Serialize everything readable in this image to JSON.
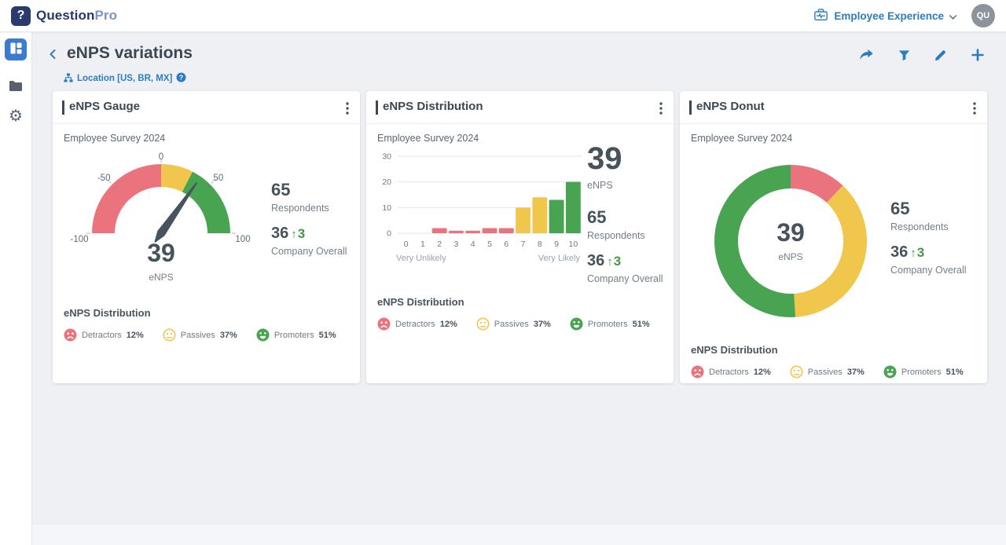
{
  "topbar": {
    "brand": {
      "logo_glyph": "?",
      "name_primary": "Question",
      "name_secondary": "Pro"
    },
    "product_switcher_label": "Employee Experience",
    "avatar_initials": "QU"
  },
  "page": {
    "title": "eNPS variations",
    "drilldown_label": "Location [US, BR, MX]"
  },
  "toolbar_icons": [
    "share",
    "filter",
    "edit",
    "add"
  ],
  "sidebar_icons": [
    "dashboard-grid",
    "folder",
    "settings-gear"
  ],
  "metrics": {
    "score": {
      "value": "39",
      "label": "eNPS"
    },
    "respondents": {
      "value": "65",
      "label": "Respondents"
    },
    "company": {
      "value": "36",
      "arrow": "↑",
      "delta": "3",
      "label": "Company Overall"
    }
  },
  "cards": [
    {
      "title": "eNPS Gauge",
      "subtitle": "Employee Survey 2024"
    },
    {
      "title": "eNPS Distribution",
      "subtitle": "Employee Survey 2024"
    },
    {
      "title": "eNPS Donut",
      "subtitle": "Employee Survey 2024"
    }
  ],
  "distribution": {
    "title": "eNPS Distribution",
    "items": [
      {
        "label": "Detractors",
        "value": "12%",
        "mood": "sad",
        "color": "#ea737e"
      },
      {
        "label": "Passives",
        "value": "37%",
        "mood": "neutral",
        "color": "#f1c64d"
      },
      {
        "label": "Promoters",
        "value": "51%",
        "mood": "happy",
        "color": "#49a451"
      }
    ]
  },
  "chart_data": [
    {
      "type": "gauge",
      "title": "eNPS Gauge",
      "value": 39,
      "min": -100,
      "max": 100,
      "axis_labels": [
        -100,
        -50,
        0,
        50,
        100
      ],
      "bands": [
        {
          "from": -100,
          "to": 0,
          "color": "#ea737e"
        },
        {
          "from": 0,
          "to": 30,
          "color": "#f1c64d"
        },
        {
          "from": 30,
          "to": 100,
          "color": "#49a451"
        }
      ],
      "needle_color": "#49535e"
    },
    {
      "type": "bar",
      "title": "eNPS Distribution",
      "x_labels": [
        "0",
        "1",
        "2",
        "3",
        "4",
        "5",
        "6",
        "7",
        "8",
        "9",
        "10"
      ],
      "values": [
        0,
        0,
        2,
        1,
        1,
        2,
        2,
        10,
        14,
        13,
        20
      ],
      "colors": [
        "#ea737e",
        "#ea737e",
        "#ea737e",
        "#ea737e",
        "#ea737e",
        "#ea737e",
        "#ea737e",
        "#f1c64d",
        "#f1c64d",
        "#49a451",
        "#49a451"
      ],
      "ylim": [
        0,
        30
      ],
      "yticks": [
        0,
        10,
        20,
        30
      ],
      "x_axis_left_label": "Very Unlikely",
      "x_axis_right_label": "Very Likely",
      "grid": true
    },
    {
      "type": "donut",
      "title": "eNPS Donut",
      "center_value": "39",
      "center_label": "eNPS",
      "slices": [
        {
          "label": "Detractors",
          "pct": 12,
          "color": "#ea737e"
        },
        {
          "label": "Passives",
          "pct": 37,
          "color": "#f1c64d"
        },
        {
          "label": "Promoters",
          "pct": 51,
          "color": "#49a451"
        }
      ]
    }
  ]
}
